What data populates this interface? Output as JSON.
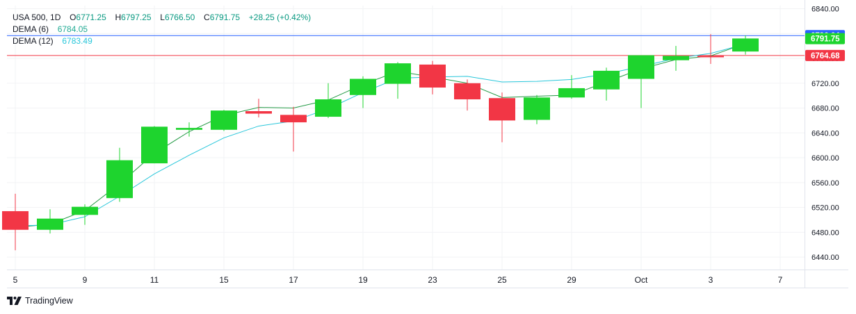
{
  "legend": {
    "symbol": "USA 500",
    "interval": "1D",
    "o_label": "O",
    "o_value": "6771.25",
    "h_label": "H",
    "h_value": "6797.25",
    "l_label": "L",
    "l_value": "6766.50",
    "c_label": "C",
    "c_value": "6791.75",
    "change": "+28.25 (+0.42%)",
    "dema6_label": "DEMA (6)",
    "dema6_value": "6784.05",
    "dema12_label": "DEMA (12)",
    "dema12_value": "6783.49"
  },
  "brand": {
    "name": "TradingView"
  },
  "colors": {
    "up": "#1ed42e",
    "down": "#f23645",
    "dema6": "#229944",
    "dema12": "#26c6da",
    "line_blue": "#2962ff",
    "line_red": "#f23645",
    "grid": "#f2f3f5",
    "axis_text": "#131722"
  },
  "chart_data": {
    "type": "candlestick",
    "ylim": [
      6420,
      6845
    ],
    "y_ticks": [
      "6840.00",
      "6800.00",
      "6760.00",
      "6720.00",
      "6680.00",
      "6640.00",
      "6600.00",
      "6560.00",
      "6520.00",
      "6480.00",
      "6440.00"
    ],
    "x_ticks": [
      {
        "label": "5",
        "index": 0
      },
      {
        "label": "9",
        "index": 2
      },
      {
        "label": "11",
        "index": 4
      },
      {
        "label": "15",
        "index": 6
      },
      {
        "label": "17",
        "index": 8
      },
      {
        "label": "19",
        "index": 10
      },
      {
        "label": "23",
        "index": 12
      },
      {
        "label": "25",
        "index": 14
      },
      {
        "label": "29",
        "index": 16
      },
      {
        "label": "Oct",
        "index": 18
      },
      {
        "label": "3",
        "index": 20
      },
      {
        "label": "7",
        "index": 22
      }
    ],
    "candles": [
      {
        "o": 6514,
        "h": 6542,
        "l": 6451,
        "c": 6484
      },
      {
        "o": 6484,
        "h": 6517,
        "l": 6478,
        "c": 6502
      },
      {
        "o": 6508,
        "h": 6525,
        "l": 6492,
        "c": 6521
      },
      {
        "o": 6535,
        "h": 6616,
        "l": 6529,
        "c": 6596
      },
      {
        "o": 6591,
        "h": 6651,
        "l": 6591,
        "c": 6650
      },
      {
        "o": 6645,
        "h": 6657,
        "l": 6634,
        "c": 6648
      },
      {
        "o": 6645,
        "h": 6677,
        "l": 6643,
        "c": 6676
      },
      {
        "o": 6675,
        "h": 6695,
        "l": 6665,
        "c": 6671
      },
      {
        "o": 6669,
        "h": 6682,
        "l": 6610,
        "c": 6657
      },
      {
        "o": 6666,
        "h": 6720,
        "l": 6664,
        "c": 6694
      },
      {
        "o": 6701,
        "h": 6731,
        "l": 6680,
        "c": 6727
      },
      {
        "o": 6719,
        "h": 6754,
        "l": 6695,
        "c": 6752
      },
      {
        "o": 6750,
        "h": 6756,
        "l": 6702,
        "c": 6713
      },
      {
        "o": 6720,
        "h": 6726,
        "l": 6676,
        "c": 6694
      },
      {
        "o": 6696,
        "h": 6705,
        "l": 6625,
        "c": 6660
      },
      {
        "o": 6661,
        "h": 6701,
        "l": 6654,
        "c": 6697
      },
      {
        "o": 6697,
        "h": 6733,
        "l": 6695,
        "c": 6712
      },
      {
        "o": 6710,
        "h": 6745,
        "l": 6692,
        "c": 6740
      },
      {
        "o": 6727,
        "h": 6765,
        "l": 6680,
        "c": 6765
      },
      {
        "o": 6757,
        "h": 6780,
        "l": 6740,
        "c": 6764
      },
      {
        "o": 6764,
        "h": 6799,
        "l": 6751,
        "c": 6762
      },
      {
        "o": 6771,
        "h": 6797,
        "l": 6766,
        "c": 6792
      }
    ],
    "series": [
      {
        "name": "DEMA (6)",
        "values": [
          6488,
          6493,
          6515,
          6558,
          6607,
          6642,
          6668,
          6681,
          6680,
          6693,
          6718,
          6739,
          6730,
          6720,
          6697,
          6699,
          6701,
          6722,
          6743,
          6758,
          6764,
          6784
        ]
      },
      {
        "name": "DEMA (12)",
        "values": [
          6490,
          6492,
          6505,
          6538,
          6574,
          6604,
          6632,
          6651,
          6659,
          6679,
          6705,
          6728,
          6730,
          6731,
          6722,
          6723,
          6726,
          6735,
          6747,
          6760,
          6768,
          6783
        ]
      }
    ],
    "price_lines": [
      {
        "label": "6796.64",
        "value": 6796.64,
        "color": "#2962ff"
      },
      {
        "label": "6791.75",
        "value": 6791.75,
        "color": "#1ed42e"
      },
      {
        "label": "6764.68",
        "value": 6764.68,
        "color": "#f23645"
      }
    ]
  }
}
